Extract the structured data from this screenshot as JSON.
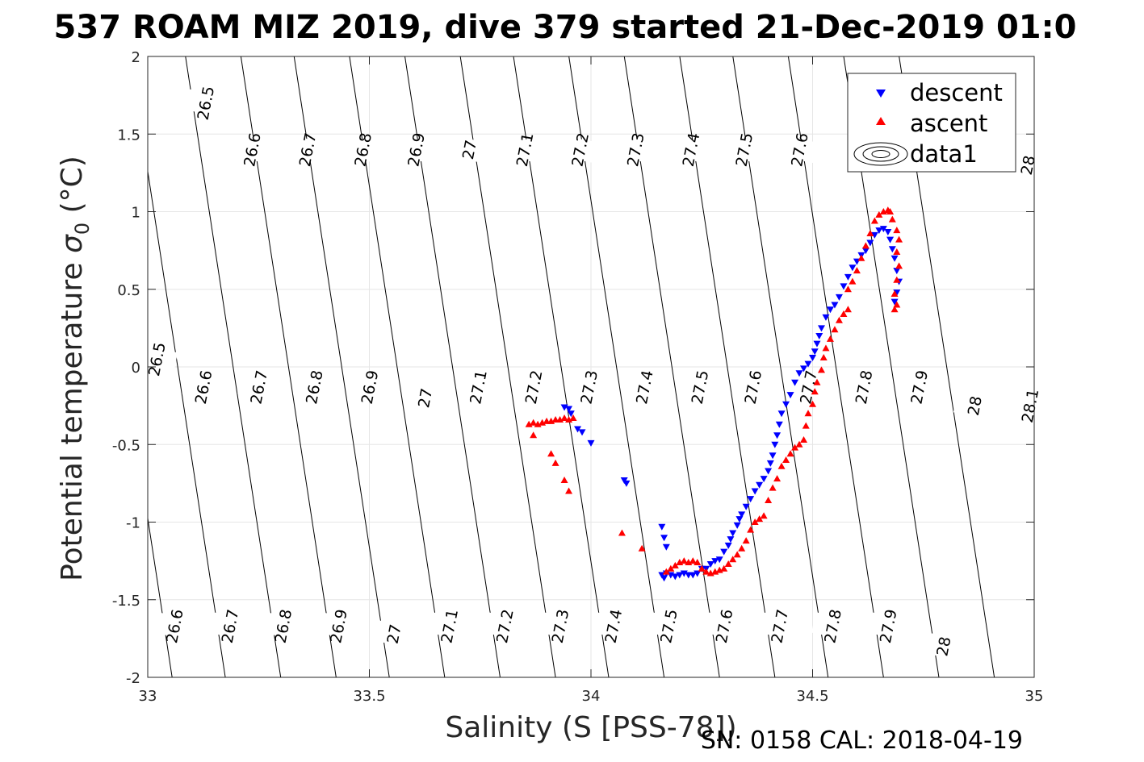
{
  "chart_data": {
    "type": "scatter",
    "title": "537 ROAM MIZ 2019, dive 379 started 21-Dec-2019 01:0",
    "xlabel": "Salinity (S [PSS-78])",
    "ylabel_main": "Potential temperature ",
    "ylabel_symbol": "σ",
    "ylabel_sub": "0",
    "ylabel_unit": " (°C)",
    "footer": "SN: 0158  CAL: 2018-04-19",
    "xlim": [
      33,
      35
    ],
    "ylim": [
      -2,
      2
    ],
    "xticks": [
      33,
      33.5,
      34,
      34.5,
      35
    ],
    "xtick_labels": [
      "33",
      "33.5",
      "34",
      "34.5",
      "35"
    ],
    "yticks": [
      -2,
      -1.5,
      -1,
      -0.5,
      0,
      0.5,
      1,
      1.5,
      2
    ],
    "ytick_labels": [
      "-2",
      "-1.5",
      "-1",
      "-0.5",
      "0",
      "0.5",
      "1",
      "1.5",
      "2"
    ],
    "grid": true,
    "legend_position": "top-right",
    "legend": [
      {
        "label": "descent",
        "marker": "triangle-down",
        "color": "#0000ff"
      },
      {
        "label": "ascent",
        "marker": "triangle-up",
        "color": "#ff0000"
      },
      {
        "label": "data1",
        "marker": "contour",
        "color": "#000000"
      }
    ],
    "isopycnals": [
      {
        "sigma": 26.5,
        "x_at_ymin": 32.94,
        "dxdy": -0.0537
      },
      {
        "sigma": 26.6,
        "x_at_ymin": 33.055,
        "dxdy": -0.0537
      },
      {
        "sigma": 26.7,
        "x_at_ymin": 33.175,
        "dxdy": -0.0537
      },
      {
        "sigma": 26.8,
        "x_at_ymin": 33.3,
        "dxdy": -0.0537
      },
      {
        "sigma": 26.9,
        "x_at_ymin": 33.425,
        "dxdy": -0.0537
      },
      {
        "sigma": 27.0,
        "x_at_ymin": 33.545,
        "dxdy": -0.0537
      },
      {
        "sigma": 27.1,
        "x_at_ymin": 33.67,
        "dxdy": -0.0537
      },
      {
        "sigma": 27.2,
        "x_at_ymin": 33.795,
        "dxdy": -0.0537
      },
      {
        "sigma": 27.3,
        "x_at_ymin": 33.92,
        "dxdy": -0.0537
      },
      {
        "sigma": 27.4,
        "x_at_ymin": 34.04,
        "dxdy": -0.0537
      },
      {
        "sigma": 27.5,
        "x_at_ymin": 34.165,
        "dxdy": -0.0537
      },
      {
        "sigma": 27.6,
        "x_at_ymin": 34.29,
        "dxdy": -0.0537
      },
      {
        "sigma": 27.7,
        "x_at_ymin": 34.415,
        "dxdy": -0.0537
      },
      {
        "sigma": 27.8,
        "x_at_ymin": 34.535,
        "dxdy": -0.0537
      },
      {
        "sigma": 27.9,
        "x_at_ymin": 34.66,
        "dxdy": -0.0537
      },
      {
        "sigma": 28.0,
        "x_at_ymin": 34.785,
        "dxdy": -0.0537
      },
      {
        "sigma": 28.1,
        "x_at_ymin": 34.91,
        "dxdy": -0.0537
      }
    ],
    "contour_labels": [
      {
        "text": "26.5",
        "x": 33.13,
        "y": 1.7
      },
      {
        "text": "26.6",
        "x": 33.235,
        "y": 1.4
      },
      {
        "text": "26.7",
        "x": 33.36,
        "y": 1.4
      },
      {
        "text": "26.8",
        "x": 33.485,
        "y": 1.4
      },
      {
        "text": "26.9",
        "x": 33.605,
        "y": 1.4
      },
      {
        "text": "27",
        "x": 33.725,
        "y": 1.4
      },
      {
        "text": "27.1",
        "x": 33.85,
        "y": 1.4
      },
      {
        "text": "27.2",
        "x": 33.975,
        "y": 1.4
      },
      {
        "text": "27.3",
        "x": 34.1,
        "y": 1.4
      },
      {
        "text": "27.4",
        "x": 34.225,
        "y": 1.4
      },
      {
        "text": "27.5",
        "x": 34.345,
        "y": 1.4
      },
      {
        "text": "27.6",
        "x": 34.47,
        "y": 1.4
      },
      {
        "text": "28",
        "x": 34.985,
        "y": 1.3
      },
      {
        "text": "26.5",
        "x": 33.02,
        "y": 0.05
      },
      {
        "text": "26.6",
        "x": 33.125,
        "y": -0.13
      },
      {
        "text": "26.7",
        "x": 33.25,
        "y": -0.13
      },
      {
        "text": "26.8",
        "x": 33.375,
        "y": -0.13
      },
      {
        "text": "26.9",
        "x": 33.5,
        "y": -0.13
      },
      {
        "text": "27",
        "x": 33.625,
        "y": -0.2
      },
      {
        "text": "27.1",
        "x": 33.745,
        "y": -0.13
      },
      {
        "text": "27.2",
        "x": 33.87,
        "y": -0.13
      },
      {
        "text": "27.3",
        "x": 33.995,
        "y": -0.13
      },
      {
        "text": "27.4",
        "x": 34.12,
        "y": -0.13
      },
      {
        "text": "27.5",
        "x": 34.245,
        "y": -0.13
      },
      {
        "text": "27.6",
        "x": 34.365,
        "y": -0.13
      },
      {
        "text": "27.7",
        "x": 34.49,
        "y": -0.13
      },
      {
        "text": "27.8",
        "x": 34.615,
        "y": -0.13
      },
      {
        "text": "27.9",
        "x": 34.74,
        "y": -0.13
      },
      {
        "text": "28",
        "x": 34.865,
        "y": -0.25
      },
      {
        "text": "28.1",
        "x": 34.99,
        "y": -0.25
      },
      {
        "text": "26.6",
        "x": 33.06,
        "y": -1.67
      },
      {
        "text": "26.7",
        "x": 33.185,
        "y": -1.67
      },
      {
        "text": "26.8",
        "x": 33.305,
        "y": -1.67
      },
      {
        "text": "26.9",
        "x": 33.43,
        "y": -1.67
      },
      {
        "text": "27",
        "x": 33.555,
        "y": -1.72
      },
      {
        "text": "27.1",
        "x": 33.68,
        "y": -1.67
      },
      {
        "text": "27.2",
        "x": 33.805,
        "y": -1.67
      },
      {
        "text": "27.3",
        "x": 33.93,
        "y": -1.67
      },
      {
        "text": "27.4",
        "x": 34.05,
        "y": -1.67
      },
      {
        "text": "27.5",
        "x": 34.175,
        "y": -1.67
      },
      {
        "text": "27.6",
        "x": 34.3,
        "y": -1.67
      },
      {
        "text": "27.7",
        "x": 34.425,
        "y": -1.67
      },
      {
        "text": "27.8",
        "x": 34.545,
        "y": -1.67
      },
      {
        "text": "27.9",
        "x": 34.67,
        "y": -1.67
      },
      {
        "text": "28",
        "x": 34.795,
        "y": -1.8
      }
    ],
    "series": [
      {
        "name": "descent",
        "marker": "triangle-down",
        "color": "#0000ff",
        "points": [
          [
            33.94,
            -0.26
          ],
          [
            33.95,
            -0.27
          ],
          [
            33.955,
            -0.3
          ],
          [
            33.97,
            -0.4
          ],
          [
            33.98,
            -0.42
          ],
          [
            34.0,
            -0.49
          ],
          [
            34.075,
            -0.73
          ],
          [
            34.08,
            -0.75
          ],
          [
            34.16,
            -1.03
          ],
          [
            34.165,
            -1.1
          ],
          [
            34.17,
            -1.16
          ],
          [
            34.16,
            -1.34
          ],
          [
            34.165,
            -1.36
          ],
          [
            34.17,
            -1.33
          ],
          [
            34.18,
            -1.34
          ],
          [
            34.19,
            -1.35
          ],
          [
            34.2,
            -1.34
          ],
          [
            34.21,
            -1.33
          ],
          [
            34.22,
            -1.34
          ],
          [
            34.23,
            -1.34
          ],
          [
            34.24,
            -1.33
          ],
          [
            34.25,
            -1.3
          ],
          [
            34.26,
            -1.3
          ],
          [
            34.27,
            -1.27
          ],
          [
            34.28,
            -1.25
          ],
          [
            34.29,
            -1.24
          ],
          [
            34.3,
            -1.19
          ],
          [
            34.31,
            -1.15
          ],
          [
            34.315,
            -1.11
          ],
          [
            34.32,
            -1.07
          ],
          [
            34.33,
            -1.02
          ],
          [
            34.335,
            -0.98
          ],
          [
            34.34,
            -0.95
          ],
          [
            34.35,
            -0.9
          ],
          [
            34.36,
            -0.85
          ],
          [
            34.37,
            -0.8
          ],
          [
            34.38,
            -0.76
          ],
          [
            34.39,
            -0.72
          ],
          [
            34.4,
            -0.67
          ],
          [
            34.405,
            -0.62
          ],
          [
            34.41,
            -0.57
          ],
          [
            34.415,
            -0.5
          ],
          [
            34.42,
            -0.44
          ],
          [
            34.425,
            -0.37
          ],
          [
            34.43,
            -0.3
          ],
          [
            34.44,
            -0.24
          ],
          [
            34.45,
            -0.18
          ],
          [
            34.46,
            -0.1
          ],
          [
            34.47,
            -0.04
          ],
          [
            34.48,
            -0.01
          ],
          [
            34.49,
            0.02
          ],
          [
            34.5,
            0.06
          ],
          [
            34.505,
            0.1
          ],
          [
            34.51,
            0.15
          ],
          [
            34.515,
            0.2
          ],
          [
            34.52,
            0.25
          ],
          [
            34.53,
            0.32
          ],
          [
            34.54,
            0.37
          ],
          [
            34.55,
            0.4
          ],
          [
            34.56,
            0.45
          ],
          [
            34.57,
            0.52
          ],
          [
            34.58,
            0.58
          ],
          [
            34.59,
            0.64
          ],
          [
            34.6,
            0.68
          ],
          [
            34.61,
            0.72
          ],
          [
            34.62,
            0.75
          ],
          [
            34.63,
            0.8
          ],
          [
            34.64,
            0.85
          ],
          [
            34.65,
            0.88
          ],
          [
            34.66,
            0.89
          ],
          [
            34.67,
            0.87
          ],
          [
            34.675,
            0.82
          ],
          [
            34.68,
            0.76
          ],
          [
            34.685,
            0.7
          ],
          [
            34.69,
            0.62
          ],
          [
            34.695,
            0.55
          ],
          [
            34.69,
            0.48
          ],
          [
            34.685,
            0.42
          ]
        ]
      },
      {
        "name": "ascent",
        "marker": "triangle-up",
        "color": "#ff0000",
        "points": [
          [
            33.86,
            -0.37
          ],
          [
            33.87,
            -0.36
          ],
          [
            33.88,
            -0.37
          ],
          [
            33.89,
            -0.36
          ],
          [
            33.9,
            -0.35
          ],
          [
            33.91,
            -0.35
          ],
          [
            33.92,
            -0.34
          ],
          [
            33.93,
            -0.34
          ],
          [
            33.94,
            -0.33
          ],
          [
            33.95,
            -0.34
          ],
          [
            33.96,
            -0.33
          ],
          [
            33.87,
            -0.44
          ],
          [
            33.91,
            -0.56
          ],
          [
            33.92,
            -0.62
          ],
          [
            33.94,
            -0.73
          ],
          [
            33.95,
            -0.8
          ],
          [
            34.07,
            -1.07
          ],
          [
            34.115,
            -1.17
          ],
          [
            34.17,
            -1.32
          ],
          [
            34.18,
            -1.3
          ],
          [
            34.19,
            -1.28
          ],
          [
            34.2,
            -1.26
          ],
          [
            34.21,
            -1.25
          ],
          [
            34.22,
            -1.26
          ],
          [
            34.23,
            -1.25
          ],
          [
            34.24,
            -1.26
          ],
          [
            34.25,
            -1.3
          ],
          [
            34.26,
            -1.32
          ],
          [
            34.27,
            -1.33
          ],
          [
            34.28,
            -1.32
          ],
          [
            34.29,
            -1.31
          ],
          [
            34.3,
            -1.3
          ],
          [
            34.31,
            -1.27
          ],
          [
            34.32,
            -1.24
          ],
          [
            34.33,
            -1.21
          ],
          [
            34.34,
            -1.17
          ],
          [
            34.35,
            -1.12
          ],
          [
            34.36,
            -1.05
          ],
          [
            34.37,
            -1.0
          ],
          [
            34.38,
            -0.98
          ],
          [
            34.39,
            -0.96
          ],
          [
            34.4,
            -0.86
          ],
          [
            34.41,
            -0.78
          ],
          [
            34.42,
            -0.72
          ],
          [
            34.43,
            -0.64
          ],
          [
            34.44,
            -0.6
          ],
          [
            34.45,
            -0.56
          ],
          [
            34.46,
            -0.52
          ],
          [
            34.47,
            -0.5
          ],
          [
            34.48,
            -0.47
          ],
          [
            34.485,
            -0.38
          ],
          [
            34.49,
            -0.3
          ],
          [
            34.5,
            -0.24
          ],
          [
            34.505,
            -0.16
          ],
          [
            34.51,
            -0.1
          ],
          [
            34.52,
            -0.02
          ],
          [
            34.525,
            0.06
          ],
          [
            34.53,
            0.12
          ],
          [
            34.54,
            0.18
          ],
          [
            34.55,
            0.24
          ],
          [
            34.56,
            0.3
          ],
          [
            34.57,
            0.34
          ],
          [
            34.58,
            0.37
          ],
          [
            34.58,
            0.5
          ],
          [
            34.59,
            0.55
          ],
          [
            34.6,
            0.62
          ],
          [
            34.61,
            0.7
          ],
          [
            34.62,
            0.78
          ],
          [
            34.63,
            0.86
          ],
          [
            34.64,
            0.94
          ],
          [
            34.65,
            0.98
          ],
          [
            34.66,
            1.0
          ],
          [
            34.67,
            1.01
          ],
          [
            34.675,
            1.0
          ],
          [
            34.68,
            0.95
          ],
          [
            34.69,
            0.88
          ],
          [
            34.695,
            0.82
          ],
          [
            34.69,
            0.74
          ],
          [
            34.695,
            0.65
          ],
          [
            34.69,
            0.56
          ],
          [
            34.685,
            0.47
          ],
          [
            34.69,
            0.4
          ],
          [
            34.685,
            0.37
          ]
        ]
      }
    ]
  }
}
